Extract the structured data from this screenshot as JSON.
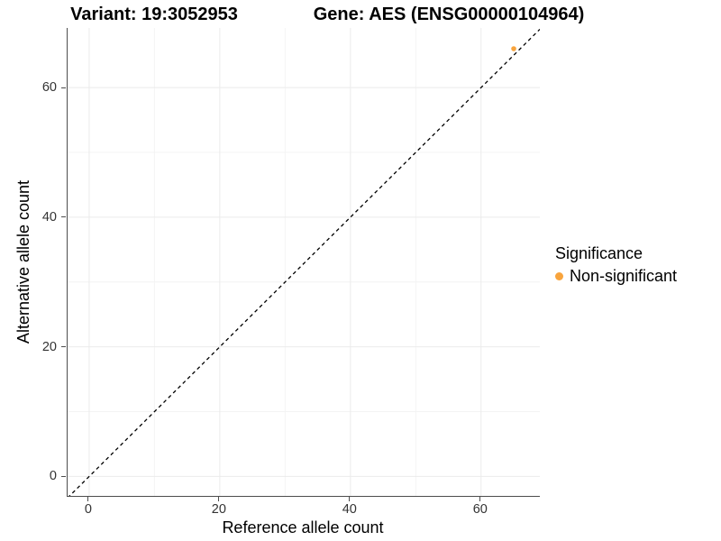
{
  "chart_data": {
    "type": "scatter",
    "titles": [
      "Variant: 19:3052953",
      "Gene: AES (ENSG00000104964)"
    ],
    "xlabel": "Reference allele count",
    "ylabel": "Alternative allele count",
    "x_ticks": [
      0,
      20,
      40,
      60
    ],
    "y_ticks": [
      0,
      20,
      40,
      60
    ],
    "x_minor_ticks": [
      10,
      30,
      50
    ],
    "y_minor_ticks": [
      10,
      30,
      50
    ],
    "xlim": [
      -3.3,
      69.0
    ],
    "ylim": [
      -3.0,
      69.2
    ],
    "grid": "major and minor gridlines, white background",
    "points": [
      {
        "x": 65,
        "y": 66,
        "series": "Non-significant"
      }
    ],
    "abline": {
      "slope": 1,
      "intercept": 0,
      "linetype": "dashed",
      "color": "#000000",
      "note": "identity line y = x"
    },
    "legend": {
      "position": "right",
      "title": "Significance",
      "items": [
        {
          "label": "Non-significant",
          "color": "#F8A43D"
        }
      ]
    },
    "colors": {
      "point": "#F8A43D",
      "grid_major": "#EBEBEB",
      "grid_minor": "#F4F4F4",
      "axis_line": "#4d4d4d",
      "tick_label": "#333333"
    }
  }
}
